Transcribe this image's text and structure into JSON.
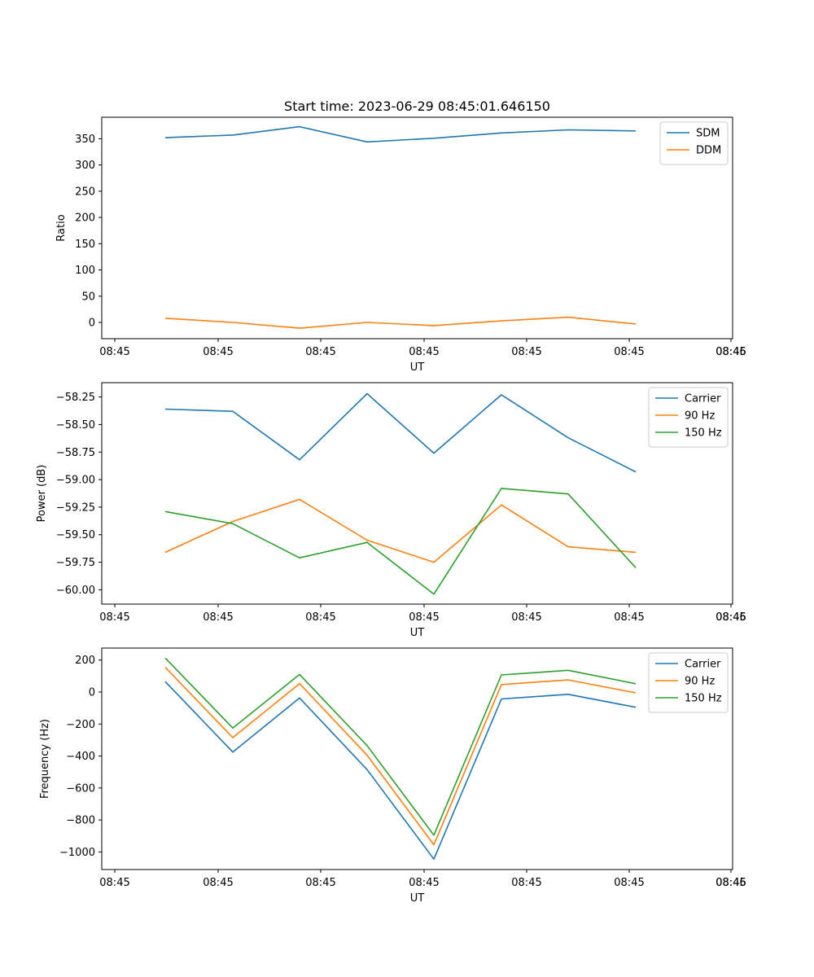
{
  "figure_title": "Start time: 2023-06-29 08:45:01.646150",
  "colors": {
    "blue": "#1f77b4",
    "orange": "#ff7f0e",
    "green": "#2ca02c"
  },
  "chart_data": [
    {
      "type": "line",
      "title": "Start time: 2023-06-29 08:45:01.646150",
      "xlabel": "UT",
      "ylabel": "Ratio",
      "x_tick_labels": [
        "08:45",
        "08:45",
        "08:45",
        "08:45",
        "08:45",
        "08:45",
        "08:45"
      ],
      "x_tick_last_label": "08:46",
      "y_ticks": [
        0,
        50,
        100,
        150,
        200,
        250,
        300,
        350
      ],
      "y_tick_labels": [
        "0",
        "50",
        "100",
        "150",
        "200",
        "250",
        "300",
        "350"
      ],
      "ylim": [
        -31,
        391
      ],
      "legend_position": "upper right",
      "series": [
        {
          "name": "SDM",
          "color": "#1f77b4",
          "values": [
            352,
            357,
            373,
            344,
            351,
            361,
            367,
            365
          ]
        },
        {
          "name": "DDM",
          "color": "#ff7f0e",
          "values": [
            8,
            0,
            -11,
            0,
            -6,
            3,
            10,
            -3
          ]
        }
      ]
    },
    {
      "type": "line",
      "xlabel": "UT",
      "ylabel": "Power (dB)",
      "x_tick_labels": [
        "08:45",
        "08:45",
        "08:45",
        "08:45",
        "08:45",
        "08:45",
        "08:45"
      ],
      "x_tick_last_label": "08:46",
      "y_ticks": [
        -60.0,
        -59.75,
        -59.5,
        -59.25,
        -59.0,
        -58.75,
        -58.5,
        -58.25
      ],
      "y_tick_labels": [
        "−60.00",
        "−59.75",
        "−59.50",
        "−59.25",
        "−59.00",
        "−58.75",
        "−58.50",
        "−58.25"
      ],
      "ylim": [
        -60.13,
        -58.12
      ],
      "legend_position": "upper right",
      "series": [
        {
          "name": "Carrier",
          "color": "#1f77b4",
          "values": [
            -58.36,
            -58.38,
            -58.82,
            -58.22,
            -58.76,
            -58.23,
            -58.62,
            -58.93
          ]
        },
        {
          "name": "90 Hz",
          "color": "#ff7f0e",
          "values": [
            -59.66,
            -59.38,
            -59.18,
            -59.55,
            -59.75,
            -59.23,
            -59.61,
            -59.66
          ]
        },
        {
          "name": "150 Hz",
          "color": "#2ca02c",
          "values": [
            -59.29,
            -59.4,
            -59.71,
            -59.57,
            -60.04,
            -59.08,
            -59.13,
            -59.8
          ]
        }
      ]
    },
    {
      "type": "line",
      "xlabel": "UT",
      "ylabel": "Frequency (Hz)",
      "x_tick_labels": [
        "08:45",
        "08:45",
        "08:45",
        "08:45",
        "08:45",
        "08:45",
        "08:45"
      ],
      "x_tick_last_label": "08:46",
      "y_ticks": [
        -1000,
        -800,
        -600,
        -400,
        -200,
        0,
        200
      ],
      "y_tick_labels": [
        "−1000",
        "−800",
        "−600",
        "−400",
        "−200",
        "0",
        "200"
      ],
      "ylim": [
        -1110,
        275
      ],
      "legend_position": "upper right",
      "series": [
        {
          "name": "Carrier",
          "color": "#1f77b4",
          "values": [
            65,
            -375,
            -37,
            -485,
            -1045,
            -43,
            -14,
            -95
          ]
        },
        {
          "name": "90 Hz",
          "color": "#ff7f0e",
          "values": [
            155,
            -285,
            53,
            -395,
            -955,
            47,
            76,
            -5
          ]
        },
        {
          "name": "150 Hz",
          "color": "#2ca02c",
          "values": [
            213,
            -225,
            110,
            -335,
            -895,
            107,
            136,
            52
          ]
        }
      ]
    }
  ]
}
